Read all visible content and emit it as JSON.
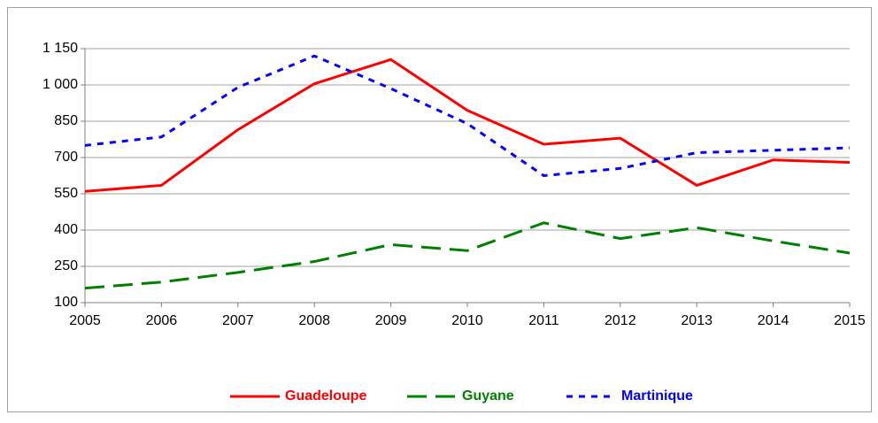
{
  "chart_data": {
    "type": "line",
    "categories": [
      "2005",
      "2006",
      "2007",
      "2008",
      "2009",
      "2010",
      "2011",
      "2012",
      "2013",
      "2014",
      "2015"
    ],
    "series": [
      {
        "name": "Guadeloupe",
        "color": "#ff0000",
        "dash": "solid",
        "values": [
          560,
          585,
          815,
          1005,
          1105,
          895,
          755,
          780,
          585,
          690,
          680
        ]
      },
      {
        "name": "Guyane",
        "color": "#008000",
        "dash": "dashed",
        "values": [
          160,
          185,
          225,
          270,
          340,
          315,
          430,
          365,
          410,
          355,
          305
        ]
      },
      {
        "name": "Martinique",
        "color": "#0000ff",
        "dash": "dotted",
        "values": [
          750,
          785,
          990,
          1120,
          985,
          840,
          625,
          655,
          720,
          730,
          740
        ]
      }
    ],
    "ylim": [
      100,
      1150
    ],
    "yticks": [
      100,
      250,
      400,
      550,
      700,
      850,
      {
        "value": 1000,
        "label": "1 000"
      },
      {
        "value": 1150,
        "label": "1 150"
      }
    ],
    "grid": true,
    "legend": "bottom"
  }
}
